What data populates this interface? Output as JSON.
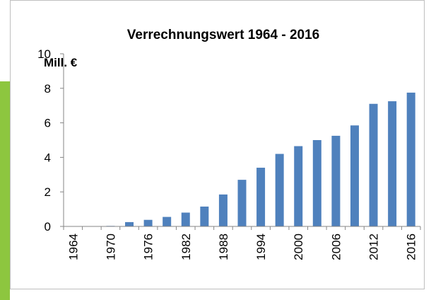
{
  "chart_data": {
    "type": "bar",
    "title": "Verrechnungswert 1964 - 2016",
    "y_label": "Mill. €",
    "categories": [
      "1964",
      null,
      "1970",
      null,
      "1976",
      null,
      "1982",
      null,
      "1988",
      null,
      "1994",
      null,
      "2000",
      null,
      "2006",
      null,
      "2012",
      null,
      "2016"
    ],
    "values": [
      0,
      0.02,
      0.03,
      0.25,
      0.38,
      0.55,
      0.8,
      1.15,
      1.85,
      2.7,
      3.4,
      4.2,
      4.65,
      5.0,
      5.25,
      5.85,
      7.1,
      7.25,
      7.75
    ],
    "color": "#4f81bd",
    "ylim": [
      0,
      10
    ],
    "yticks": [
      0,
      2,
      4,
      6,
      8,
      10
    ],
    "grid": false
  }
}
